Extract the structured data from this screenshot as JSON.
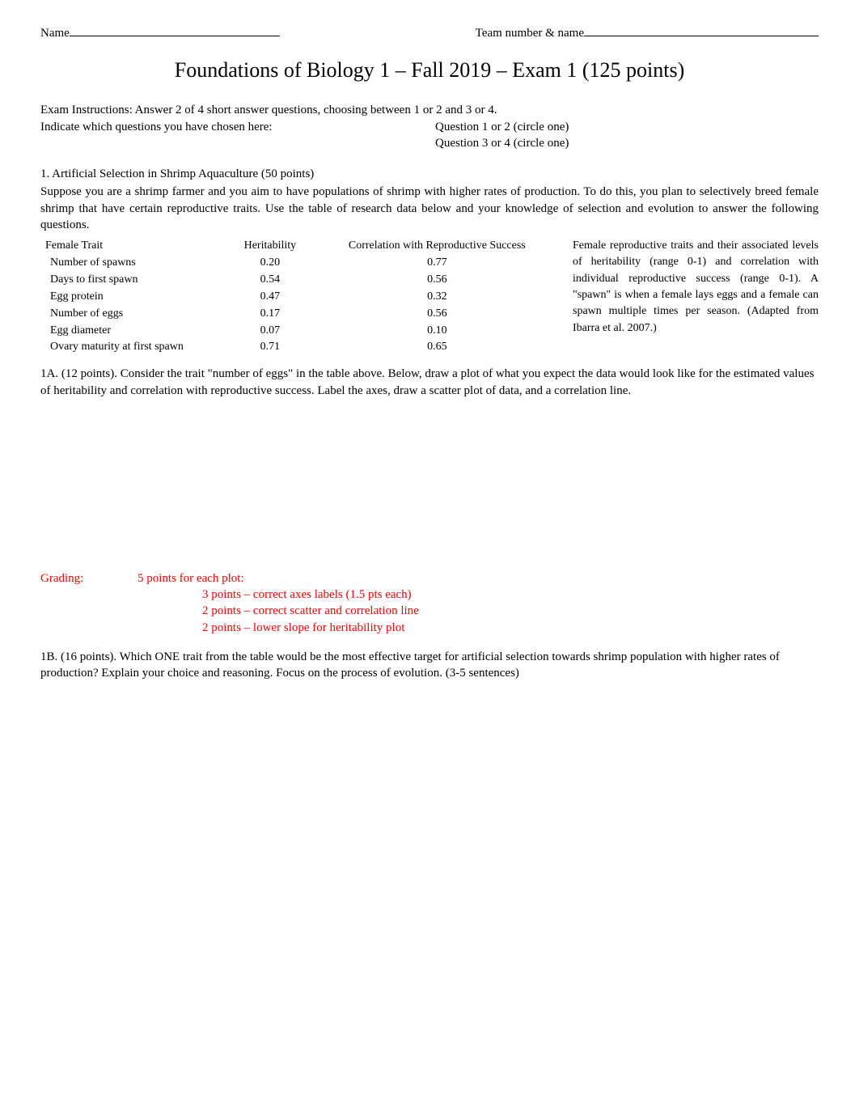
{
  "header": {
    "name_label": "Name",
    "team_label": "Team number & name "
  },
  "title": "Foundations of Biology 1 – Fall 2019 – Exam 1 (125 points)",
  "instructions": {
    "line1_left": "Exam Instructions:   Answer 2 of 4 short answer questions, choosing between 1 or 2 and 3 or 4.",
    "line2_left": "Indicate which questions you have chosen here:",
    "line2_right": "Question 1 or 2 (circle one)",
    "line3_right": "Question 3 or 4 (circle one)"
  },
  "q1": {
    "header": "1. Artificial Selection in Shrimp Aquaculture (50 points)",
    "intro": "Suppose you are a shrimp farmer and you aim to have populations of shrimp with higher rates of production. To do this, you plan to selectively breed female shrimp that have certain reproductive traits. Use the table of research data below and your knowledge of selection and evolution to answer the following questions.",
    "table": {
      "columns": [
        "Female Trait",
        "Heritability",
        "Correlation with Reproductive Success"
      ],
      "rows": [
        [
          "Number of spawns",
          "0.20",
          "0.77"
        ],
        [
          "Days to first spawn",
          "0.54",
          "0.56"
        ],
        [
          "Egg protein",
          "0.47",
          "0.32"
        ],
        [
          "Number of eggs",
          "0.17",
          "0.56"
        ],
        [
          "Egg diameter",
          "0.07",
          "0.10"
        ],
        [
          "Ovary maturity at first spawn",
          "0.71",
          "0.65"
        ]
      ],
      "col_widths": [
        "220px",
        "110px",
        "290px"
      ]
    },
    "caption": "Female reproductive traits and their associated levels of heritability (range 0-1) and correlation with individual reproductive success (range 0-1). A \"spawn\" is when a female lays eggs and a female can spawn multiple times per season. (Adapted from Ibarra et al. 2007.)",
    "partA": "1A. (12 points). Consider the trait \"number of eggs\" in the table above. Below, draw a plot of what you expect the data would look like for the estimated values of heritability and correlation with reproductive success. Label the axes, draw a scatter plot of data, and a correlation line.",
    "grading": {
      "label": "Grading:",
      "main": "5 points for each plot:",
      "sub1": "3 points – correct axes labels (1.5 pts each)",
      "sub2": "2 points – correct scatter and correlation line",
      "sub3": "2 points – lower slope for heritability plot",
      "color": "#ff0000"
    },
    "partB": "1B. (16 points). Which ONE trait from the table would be the most effective target for artificial selection towards shrimp population with higher rates of production? Explain your choice and reasoning. Focus on the process of evolution. (3-5 sentences)"
  },
  "styling": {
    "body_font": "Times New Roman",
    "body_fontsize": 15,
    "title_fontsize": 26,
    "table_fontsize": 14,
    "caption_fontsize": 14,
    "text_color": "#000000",
    "background_color": "#ffffff",
    "grading_color": "#ff0000"
  }
}
